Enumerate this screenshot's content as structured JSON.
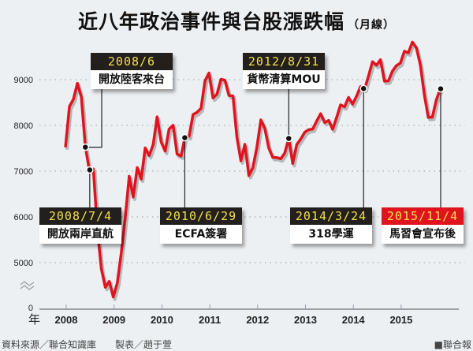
{
  "title": "近八年政治事件與台股漲跌幅",
  "subtitle": "（月線）",
  "footer": {
    "source": "資料來源／聯合知識庫",
    "maker": "製表／趙于萱",
    "brand": "■聯合報"
  },
  "chart_data": {
    "type": "line",
    "title": "近八年政治事件與台股漲跌幅（月線）",
    "xlabel": "年",
    "ylabel": "",
    "x_ticks": [
      "2008",
      "2009",
      "2010",
      "2011",
      "2012",
      "2013",
      "2014",
      "2015"
    ],
    "y_ticks": [
      "0",
      "5000",
      "6000",
      "7000",
      "8000",
      "9000"
    ],
    "ylim": [
      0,
      10000
    ],
    "y_axis_break": "between 0 and 5000",
    "grid": "dotted horizontal",
    "start": "2008/1",
    "line_color": "#e0141e",
    "values": [
      7521,
      8413,
      8572,
      8920,
      8619,
      7524,
      7024,
      7046,
      5719,
      4870,
      4460,
      4591,
      4248,
      4557,
      5211,
      5992,
      6890,
      6432,
      7078,
      6826,
      7509,
      7340,
      7582,
      8188,
      7640,
      7436,
      7920,
      8004,
      7374,
      7329,
      7760,
      7761,
      8238,
      8287,
      8372,
      8973,
      9145,
      8600,
      8683,
      9008,
      8988,
      8653,
      8644,
      7741,
      7225,
      7588,
      6904,
      7072,
      7518,
      8121,
      7933,
      7501,
      7301,
      7296,
      7270,
      7397,
      7715,
      7166,
      7581,
      7700,
      7850,
      7907,
      7919,
      8094,
      8255,
      8062,
      8108,
      7915,
      8173,
      8450,
      8407,
      8612,
      8463,
      8640,
      8849,
      8792,
      9076,
      9393,
      9315,
      9436,
      8967,
      8974,
      9187,
      9307,
      9362,
      9622,
      9586,
      9820,
      9701,
      9323,
      8665,
      8174,
      8181,
      8554,
      8800
    ],
    "annotations": [
      {
        "date": "2008/6",
        "label": "開放陸客來台",
        "highlight": false
      },
      {
        "date": "2008/7/4",
        "label": "開放兩岸直航",
        "highlight": false
      },
      {
        "date": "2010/6/29",
        "label": "ECFA簽署",
        "highlight": false
      },
      {
        "date": "2012/8/31",
        "label": "貨幣清算MOU",
        "highlight": false
      },
      {
        "date": "2014/3/24",
        "label": "318學運",
        "highlight": false
      },
      {
        "date": "2015/11/4",
        "label": "馬習會宣布後",
        "highlight": true
      }
    ]
  }
}
